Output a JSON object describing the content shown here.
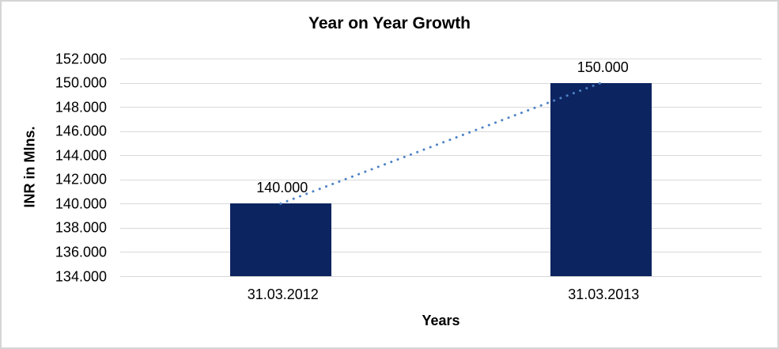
{
  "chart_data": {
    "type": "bar",
    "title": "Year on Year Growth",
    "xlabel": "Years",
    "ylabel": "INR in Mlns.",
    "categories": [
      "31.03.2012",
      "31.03.2013"
    ],
    "values": [
      140000,
      150000
    ],
    "data_labels": [
      "140.000",
      "150.000"
    ],
    "yticks": [
      "152.000",
      "150.000",
      "148.000",
      "146.000",
      "144.000",
      "142.000",
      "140.000",
      "138.000",
      "136.000",
      "134.000"
    ],
    "ylim": [
      134000,
      152000
    ],
    "ytick_step": 2000,
    "grid": "horizontal",
    "legend": "none",
    "trendline": {
      "style": "dotted",
      "from_value": 140000,
      "to_value": 150000
    },
    "colors": {
      "bar": "#0c2460",
      "trendline": "#4d83c6",
      "gridline": "#d9d9d9",
      "text": "#000000",
      "frame_border": "#d5d5d5"
    }
  }
}
